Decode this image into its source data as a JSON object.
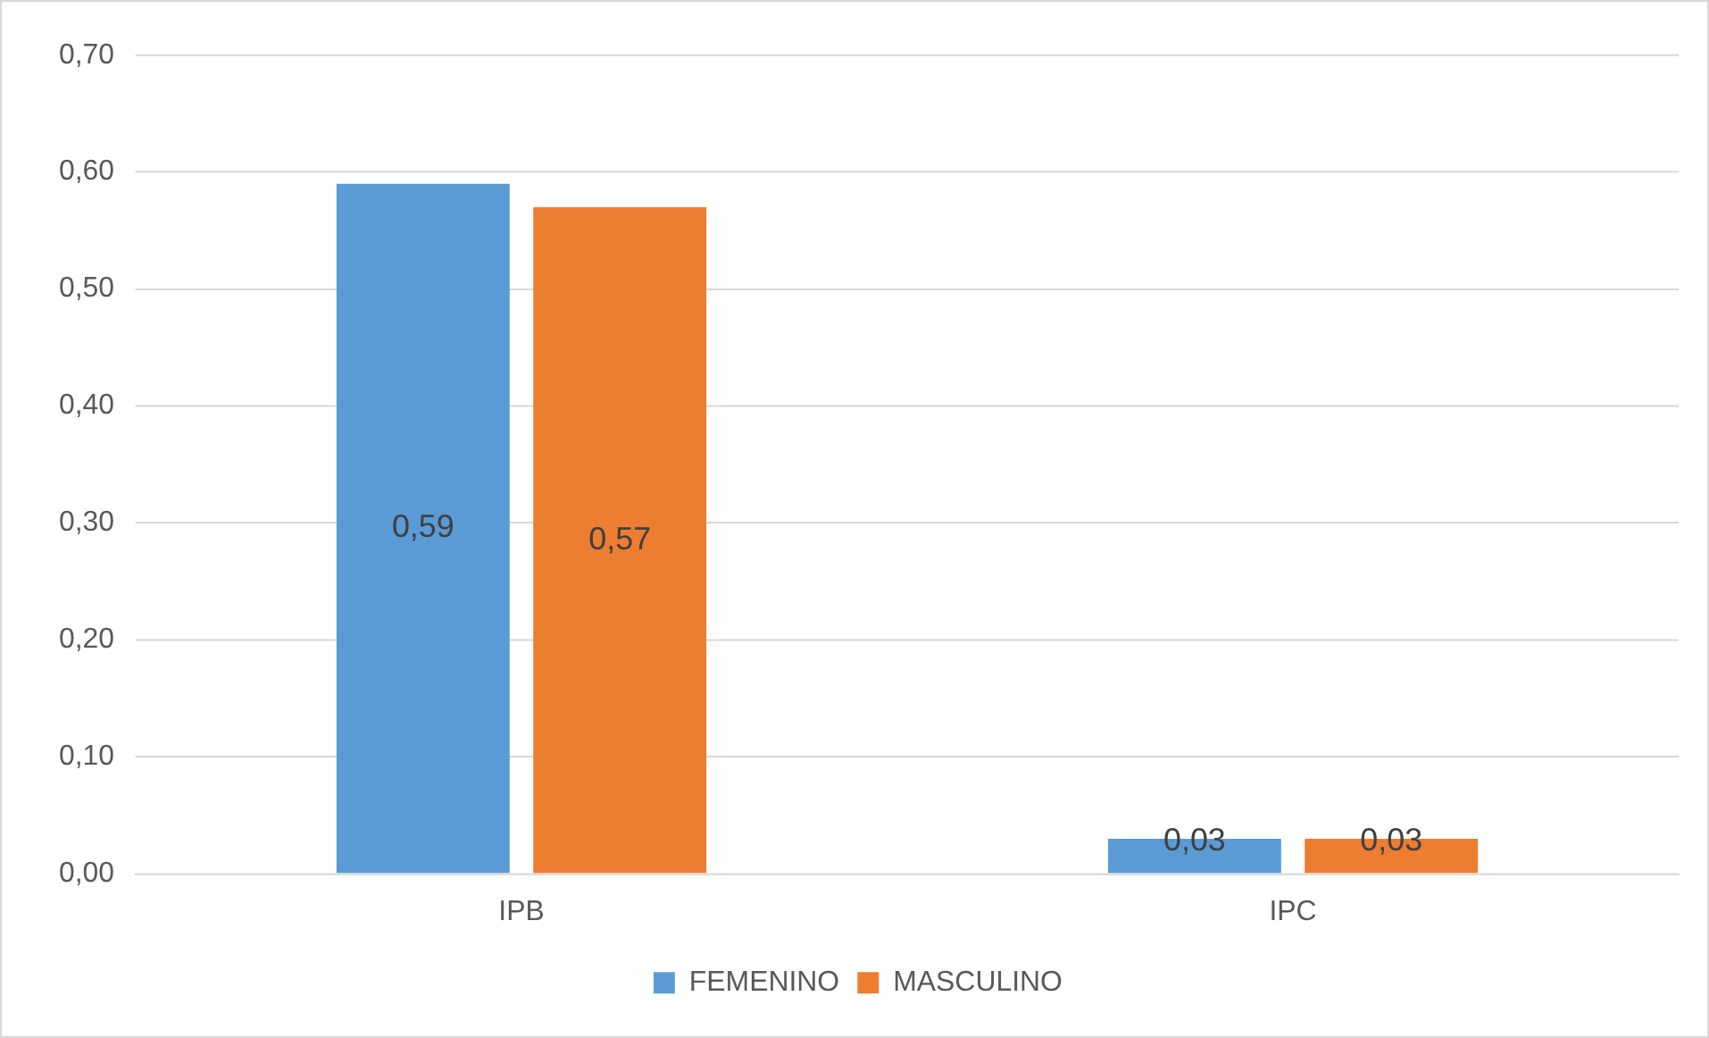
{
  "chart_data": {
    "type": "bar",
    "categories": [
      "IPB",
      "IPC"
    ],
    "series": [
      {
        "name": "FEMENINO",
        "color": "#5b9bd5",
        "values": [
          0.59,
          0.03
        ],
        "value_labels": [
          "0,59",
          "0,03"
        ]
      },
      {
        "name": "MASCULINO",
        "color": "#ed7d31",
        "values": [
          0.57,
          0.03
        ],
        "value_labels": [
          "0,57",
          "0,03"
        ]
      }
    ],
    "ylim": [
      0,
      0.7
    ],
    "yticks": [
      {
        "value": 0,
        "label": "0,00"
      },
      {
        "value": 0.1,
        "label": "0,10"
      },
      {
        "value": 0.2,
        "label": "0,20"
      },
      {
        "value": 0.3,
        "label": "0,30"
      },
      {
        "value": 0.4,
        "label": "0,40"
      },
      {
        "value": 0.5,
        "label": "0,50"
      },
      {
        "value": 0.6,
        "label": "0,60"
      },
      {
        "value": 0.7,
        "label": "0,70"
      }
    ],
    "grid": "y",
    "legend": "bottom"
  }
}
